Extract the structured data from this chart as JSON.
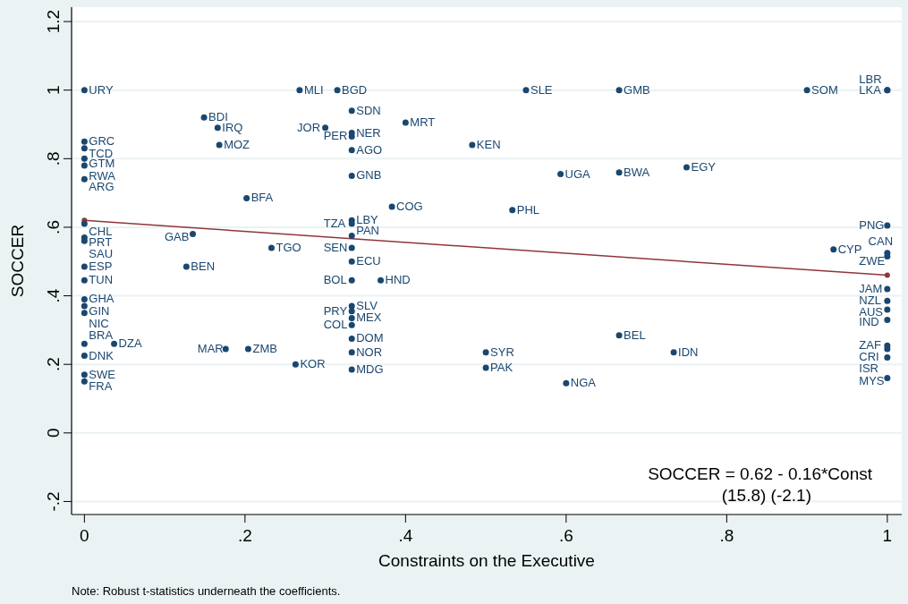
{
  "chart_data": {
    "type": "scatter",
    "xlabel": "Constraints on the Executive",
    "ylabel": "SOCCER",
    "xlim": [
      -0.016,
      1.018
    ],
    "ylim": [
      -0.238,
      1.242
    ],
    "xticks": [
      0,
      {
        "value": 0.2,
        "label": ".2"
      },
      {
        "value": 0.4,
        "label": ".4"
      },
      {
        "value": 0.6,
        "label": ".6"
      },
      {
        "value": 0.8,
        "label": ".8"
      },
      1
    ],
    "yticks": [
      {
        "value": -0.2,
        "label": "-.2"
      },
      0,
      {
        "value": 0.2,
        "label": ".2"
      },
      {
        "value": 0.4,
        "label": ".4"
      },
      {
        "value": 0.6,
        "label": ".6"
      },
      {
        "value": 0.8,
        "label": ".8"
      },
      1,
      1.2
    ],
    "grid": "y",
    "marker": "circle",
    "series": [
      {
        "type": "scatter",
        "color": "#1a476f",
        "x": [
          0,
          0,
          0,
          0,
          0,
          0,
          0,
          0,
          0,
          0,
          0,
          0,
          0,
          0,
          0,
          0,
          0,
          0,
          0.037,
          0.268,
          0.315,
          0.149,
          0.166,
          0.168,
          0.3,
          0.333,
          0.333,
          0.333,
          0.333,
          0.4,
          0.333,
          0.202,
          0.383,
          0.333,
          0.333,
          0.333,
          0.333,
          0.333,
          0.333,
          0.369,
          0.135,
          0.233,
          0.127,
          0.333,
          0.333,
          0.333,
          0.333,
          0.333,
          0.333,
          0.333,
          0.176,
          0.204,
          0.263,
          0.55,
          0.666,
          0.483,
          0.593,
          0.666,
          0.75,
          0.533,
          0.666,
          0.734,
          0.5,
          0.5,
          0.6,
          0.9,
          1,
          1,
          1,
          0.933,
          1,
          1,
          1,
          1,
          1,
          1,
          1,
          1,
          1,
          1
        ],
        "values": [
          1,
          0.85,
          0.83,
          0.8,
          0.78,
          0.74,
          0.61,
          0.57,
          0.56,
          0.485,
          0.445,
          0.39,
          0.37,
          0.35,
          0.26,
          0.225,
          0.17,
          0.15,
          0.26,
          1,
          1,
          0.92,
          0.89,
          0.84,
          0.89,
          0.94,
          0.875,
          0.865,
          0.825,
          0.905,
          0.75,
          0.685,
          0.66,
          0.62,
          0.61,
          0.575,
          0.54,
          0.5,
          0.445,
          0.445,
          0.58,
          0.54,
          0.485,
          0.37,
          0.355,
          0.335,
          0.315,
          0.275,
          0.235,
          0.185,
          0.245,
          0.245,
          0.2,
          1,
          1,
          0.84,
          0.755,
          0.76,
          0.775,
          0.65,
          0.285,
          0.235,
          0.235,
          0.19,
          0.145,
          1,
          1,
          1,
          0.605,
          0.535,
          0.525,
          0.515,
          0.42,
          0.385,
          0.36,
          0.33,
          0.255,
          0.245,
          0.22,
          0.16
        ],
        "value_labels": [
          "URY",
          "GRC",
          "TCD",
          "GTM",
          "RWA",
          "ARG",
          "CHL",
          "PRT",
          "SAU",
          "ESP",
          "TUN",
          "GHA",
          "GIN",
          "NIC",
          "BRA",
          "DNK",
          "SWE",
          "FRA",
          "DZA",
          "MLI",
          "BGD",
          "BDI",
          "IRQ",
          "MOZ",
          "JOR",
          "SDN",
          "NER",
          "PER",
          "AGO",
          "MRT",
          "GNB",
          "BFA",
          "COG",
          "LBY",
          "TZA",
          "PAN",
          "SEN",
          "ECU",
          "BOL",
          "HND",
          "GAB",
          "TGO",
          "BEN",
          "SLV",
          "PRY",
          "MEX",
          "COL",
          "DOM",
          "NOR",
          "MDG",
          "MAR",
          "ZMB",
          "KOR",
          "SLE",
          "GMB",
          "KEN",
          "UGA",
          "BWA",
          "EGY",
          "PHL",
          "BEL",
          "IDN",
          "SYR",
          "PAK",
          "NGA",
          "SOM",
          "LKA",
          "LBR",
          "PNG",
          "CYP",
          "ZWE",
          "CAN",
          "JAM",
          "NZL",
          "AUS",
          "IND",
          "ZAF",
          "CRI",
          "ISR",
          "MYS"
        ]
      },
      {
        "type": "line",
        "color": "#90353b",
        "x": [
          0,
          1
        ],
        "values": [
          0.62,
          0.46
        ]
      }
    ],
    "annotations": [
      "SOCCER = 0.62 - 0.16*Const",
      "(15.8) (-2.1)",
      "Note: Robust t-statistics underneath the coefficients."
    ]
  }
}
